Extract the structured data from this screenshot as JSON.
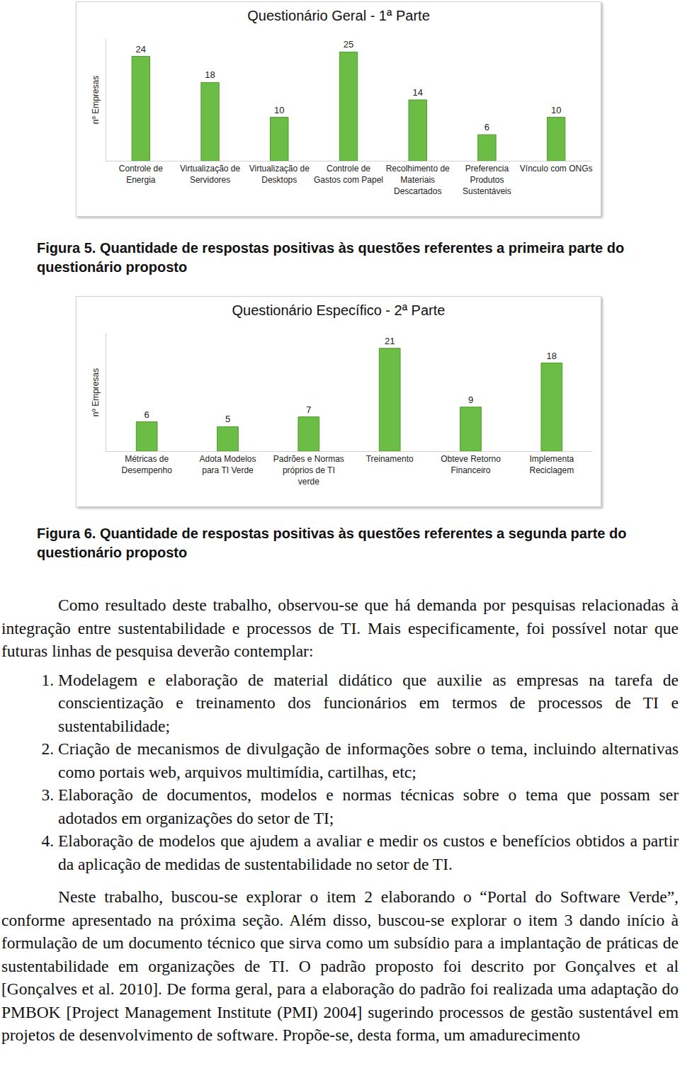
{
  "chart_data": [
    {
      "type": "bar",
      "title": "Questionário Geral - 1ª Parte",
      "y_label": "nº Empresas",
      "categories": [
        "Controle de Energia",
        "Virtualização de Servidores",
        "Virtualização de Desktops",
        "Controle de Gastos com Papel",
        "Recolhimento de Materiais Descartados",
        "Preferencia Produtos Sustentáveis",
        "Vínculo com ONGs"
      ],
      "values": [
        24,
        18,
        10,
        25,
        14,
        6,
        10
      ],
      "color": "#6cbd45",
      "ylim": [
        0,
        28
      ],
      "yticks": [],
      "grid": false,
      "data_labels": true,
      "tick_labels": "x"
    },
    {
      "type": "bar",
      "title": "Questionário Específico - 2ª Parte",
      "y_label": "nº Empresas",
      "categories": [
        "Métricas de Desempenho",
        "Adota Modelos para TI Verde",
        "Padrões e Normas próprios de TI verde",
        "Treinamento",
        "Obteve Retorno Financeiro",
        "Implementa Reciclagem"
      ],
      "values": [
        6,
        5,
        7,
        21,
        9,
        18
      ],
      "color": "#6cbd45",
      "ylim": [
        0,
        24
      ],
      "yticks": [],
      "grid": false,
      "data_labels": true,
      "tick_labels": "x"
    }
  ],
  "document": {
    "captions": [
      "Figura 5. Quantidade de respostas positivas às questões referentes a primeira parte do questionário proposto",
      "Figura 6. Quantidade de respostas positivas às questões referentes a segunda parte do questionário proposto"
    ],
    "intro": "Como resultado deste trabalho, observou-se que há demanda por pesquisas relacionadas à integração entre sustentabilidade e processos de TI. Mais especificamente, foi possível notar que futuras linhas de pesquisa deverão contemplar:",
    "list": [
      "Modelagem e elaboração de material didático que auxilie as empresas na tarefa de conscientização e treinamento dos funcionários em termos de processos de TI e sustentabilidade;",
      "Criação de mecanismos de divulgação de informações sobre o tema, incluindo alternativas como portais web, arquivos multimídia, cartilhas, etc;",
      "Elaboração de documentos, modelos e normas técnicas sobre o tema que possam ser adotados em organizações do setor de TI;",
      "Elaboração de modelos que ajudem a avaliar e medir os custos e benefícios obtidos a partir da aplicação de medidas de sustentabilidade no setor de TI."
    ],
    "closing": "Neste trabalho, buscou-se explorar o item 2 elaborando o “Portal do Software Verde”, conforme apresentado na próxima seção. Além disso, buscou-se explorar o item 3 dando início à formulação de um documento técnico que sirva como um subsídio para a implantação de práticas de sustentabilidade em organizações de TI. O padrão proposto foi descrito por Gonçalves et al [Gonçalves et al. 2010]. De forma geral, para a elaboração do padrão foi realizada uma adaptação do PMBOK [Project Management Institute (PMI) 2004] sugerindo processos de gestão sustentável em projetos de desenvolvimento de software. Propõe-se, desta forma, um amadurecimento"
  }
}
